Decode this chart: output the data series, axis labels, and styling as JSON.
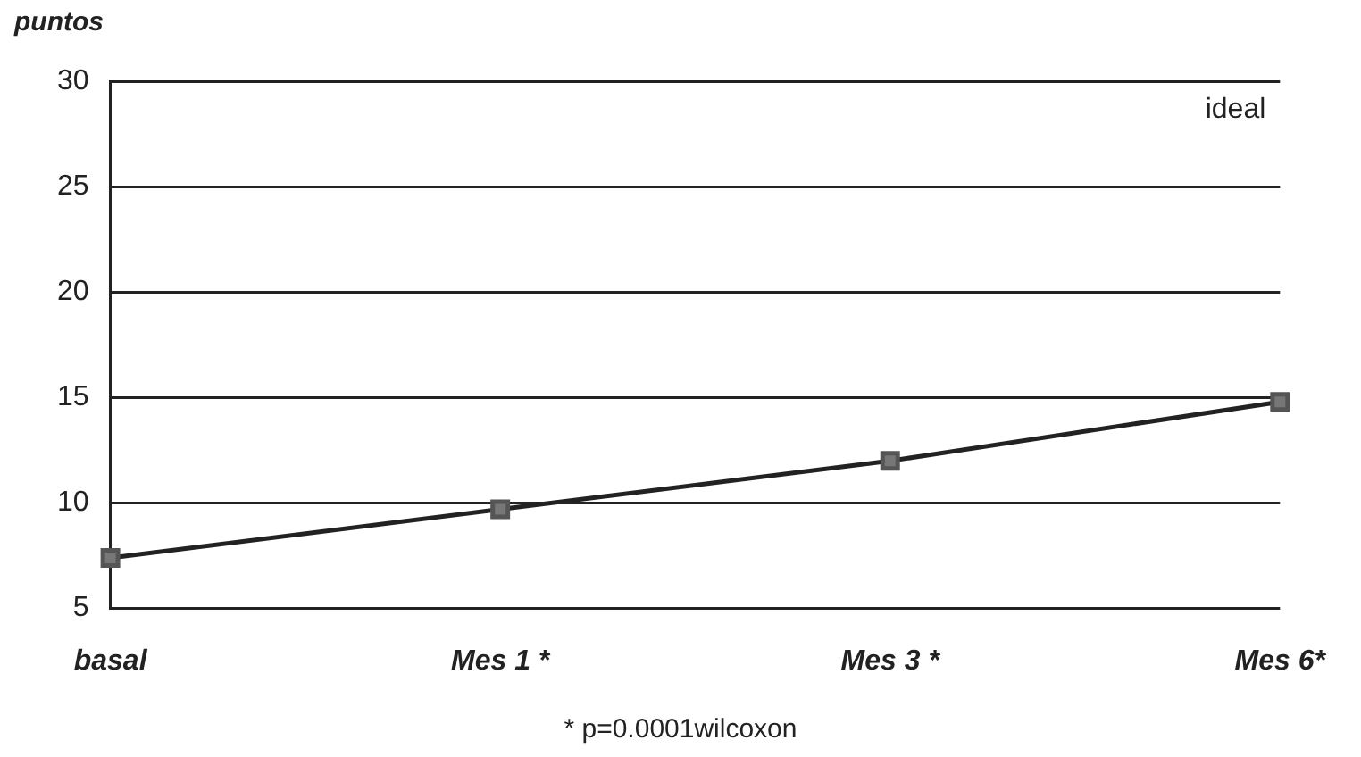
{
  "chart_data": {
    "type": "line",
    "ylabel": "puntos",
    "categories": [
      "basal",
      "Mes 1 *",
      "Mes 3 *",
      "Mes 6*"
    ],
    "series": [
      {
        "color": "#222222",
        "values": [
          7.4,
          9.7,
          12.0,
          14.8
        ]
      }
    ],
    "ylim": [
      5,
      30
    ],
    "yticks": [
      5,
      10,
      15,
      20,
      25,
      30
    ],
    "grid": "y",
    "legend": false,
    "marker": "square",
    "line_style": "solid",
    "annotations": [
      "ideal",
      "* p=0.0001wilcoxon"
    ]
  }
}
